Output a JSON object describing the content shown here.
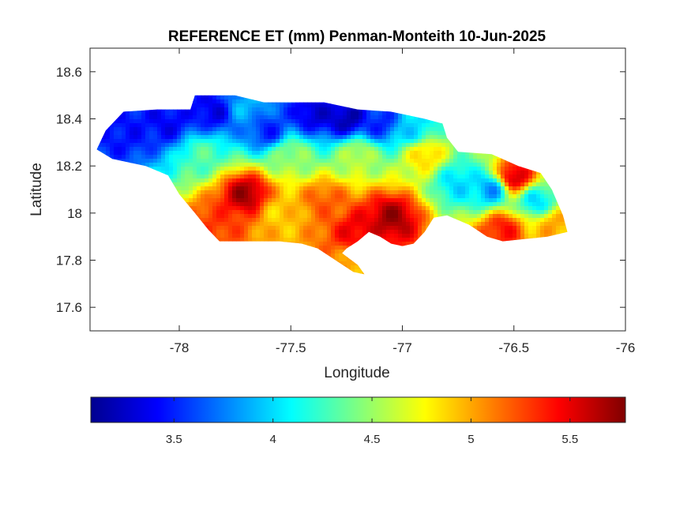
{
  "chart_data": {
    "type": "heatmap",
    "title": "REFERENCE ET (mm) Penman-Monteith 10-Jun-2025",
    "xlabel": "Longitude",
    "ylabel": "Latitude",
    "xlim": [
      -78.4,
      -76
    ],
    "ylim": [
      17.5,
      18.7
    ],
    "x_ticks": [
      -78,
      -77.5,
      -77,
      -76.5,
      -76
    ],
    "x_tick_labels": [
      "-78",
      "-77.5",
      "-77",
      "-76.5",
      "-76"
    ],
    "y_ticks": [
      17.6,
      17.8,
      18,
      18.2,
      18.4,
      18.6
    ],
    "y_tick_labels": [
      "17.6",
      "17.8",
      "18",
      "18.2",
      "18.4",
      "18.6"
    ],
    "colormap": "jet",
    "colorbar": {
      "position": "bottom",
      "range": [
        3.08,
        5.78
      ],
      "ticks": [
        3.5,
        4,
        4.5,
        5,
        5.5
      ],
      "tick_labels": [
        "3.5",
        "4",
        "4.5",
        "5",
        "5.5"
      ]
    },
    "value_range": [
      3.08,
      5.78
    ],
    "outline": [
      [
        -78.37,
        18.27
      ],
      [
        -78.33,
        18.35
      ],
      [
        -78.25,
        18.43
      ],
      [
        -78.1,
        18.44
      ],
      [
        -77.95,
        18.44
      ],
      [
        -77.93,
        18.5
      ],
      [
        -77.75,
        18.5
      ],
      [
        -77.62,
        18.47
      ],
      [
        -77.35,
        18.47
      ],
      [
        -77.2,
        18.44
      ],
      [
        -77.05,
        18.43
      ],
      [
        -76.9,
        18.4
      ],
      [
        -76.82,
        18.38
      ],
      [
        -76.8,
        18.32
      ],
      [
        -76.75,
        18.26
      ],
      [
        -76.6,
        18.25
      ],
      [
        -76.48,
        18.2
      ],
      [
        -76.38,
        18.17
      ],
      [
        -76.33,
        18.1
      ],
      [
        -76.28,
        17.99
      ],
      [
        -76.26,
        17.92
      ],
      [
        -76.35,
        17.9
      ],
      [
        -76.45,
        17.89
      ],
      [
        -76.55,
        17.88
      ],
      [
        -76.62,
        17.9
      ],
      [
        -76.7,
        17.95
      ],
      [
        -76.8,
        17.99
      ],
      [
        -76.86,
        17.98
      ],
      [
        -76.9,
        17.92
      ],
      [
        -76.95,
        17.87
      ],
      [
        -77.0,
        17.86
      ],
      [
        -77.05,
        17.87
      ],
      [
        -77.1,
        17.9
      ],
      [
        -77.15,
        17.92
      ],
      [
        -77.2,
        17.88
      ],
      [
        -77.25,
        17.85
      ],
      [
        -77.27,
        17.83
      ],
      [
        -77.2,
        17.78
      ],
      [
        -77.17,
        17.74
      ],
      [
        -77.22,
        17.75
      ],
      [
        -77.3,
        17.8
      ],
      [
        -77.38,
        17.85
      ],
      [
        -77.45,
        17.87
      ],
      [
        -77.55,
        17.88
      ],
      [
        -77.75,
        17.88
      ],
      [
        -77.82,
        17.88
      ],
      [
        -77.87,
        17.93
      ],
      [
        -77.93,
        18.0
      ],
      [
        -78.0,
        18.08
      ],
      [
        -78.05,
        18.16
      ],
      [
        -78.15,
        18.2
      ],
      [
        -78.3,
        18.23
      ],
      [
        -78.37,
        18.27
      ]
    ],
    "field_anchors": [
      {
        "lon": -78.25,
        "lat": 18.35,
        "value": 3.45
      },
      {
        "lon": -78.05,
        "lat": 18.38,
        "value": 3.4
      },
      {
        "lon": -77.85,
        "lat": 18.43,
        "value": 3.35
      },
      {
        "lon": -77.7,
        "lat": 18.45,
        "value": 3.9
      },
      {
        "lon": -77.6,
        "lat": 18.35,
        "value": 3.5
      },
      {
        "lon": -77.4,
        "lat": 18.42,
        "value": 3.3
      },
      {
        "lon": -77.25,
        "lat": 18.4,
        "value": 3.2
      },
      {
        "lon": -77.1,
        "lat": 18.38,
        "value": 3.5
      },
      {
        "lon": -76.95,
        "lat": 18.35,
        "value": 4.0
      },
      {
        "lon": -77.9,
        "lat": 18.25,
        "value": 4.3
      },
      {
        "lon": -77.5,
        "lat": 18.25,
        "value": 4.5
      },
      {
        "lon": -77.2,
        "lat": 18.25,
        "value": 4.6
      },
      {
        "lon": -76.9,
        "lat": 18.25,
        "value": 4.9
      },
      {
        "lon": -77.7,
        "lat": 18.08,
        "value": 5.7
      },
      {
        "lon": -77.55,
        "lat": 18.0,
        "value": 4.9
      },
      {
        "lon": -77.35,
        "lat": 18.05,
        "value": 5.2
      },
      {
        "lon": -77.05,
        "lat": 17.98,
        "value": 5.7
      },
      {
        "lon": -77.2,
        "lat": 17.92,
        "value": 5.5
      },
      {
        "lon": -77.85,
        "lat": 17.95,
        "value": 5.3
      },
      {
        "lon": -76.75,
        "lat": 18.13,
        "value": 4.0
      },
      {
        "lon": -76.6,
        "lat": 18.1,
        "value": 3.8
      },
      {
        "lon": -76.5,
        "lat": 18.15,
        "value": 5.6
      },
      {
        "lon": -76.4,
        "lat": 18.05,
        "value": 4.0
      },
      {
        "lon": -76.55,
        "lat": 17.93,
        "value": 5.4
      },
      {
        "lon": -76.32,
        "lat": 17.95,
        "value": 5.0
      },
      {
        "lon": -77.2,
        "lat": 17.78,
        "value": 5.0
      }
    ]
  }
}
